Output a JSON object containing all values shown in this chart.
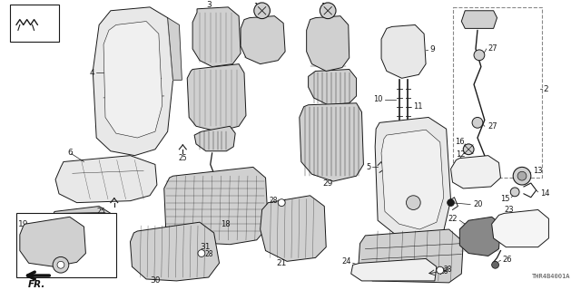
{
  "fig_width": 6.4,
  "fig_height": 3.2,
  "dpi": 100,
  "background_color": "#ffffff",
  "part_number_ref": "THR4B4001A",
  "line_color": "#1a1a1a",
  "fill_light": "#e8e8e8",
  "fill_mid": "#d0d0d0",
  "fill_dark": "#555555"
}
